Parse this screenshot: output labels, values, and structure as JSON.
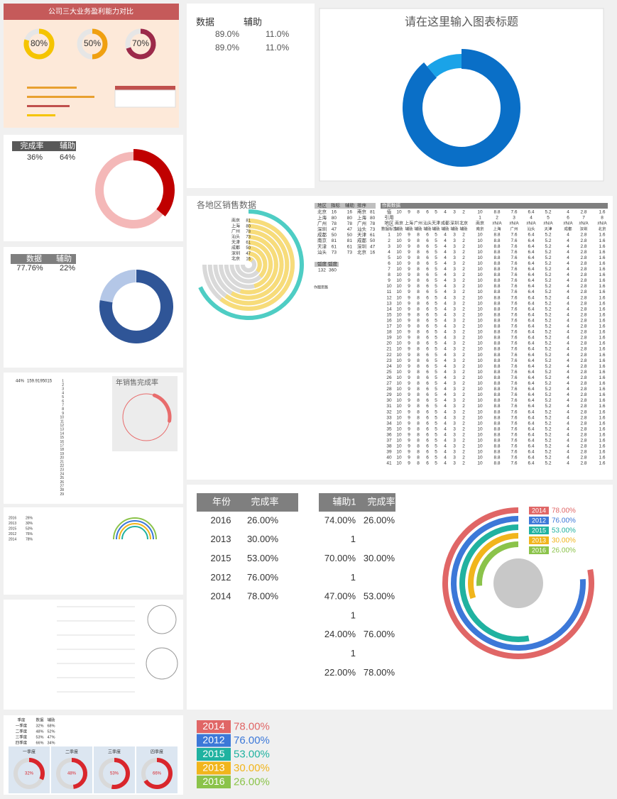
{
  "profit_panel": {
    "title": "公司三大业务盈利能力对比",
    "gauges": [
      80,
      50,
      70
    ],
    "gauge_labels": [
      "80%",
      "50%",
      "70%"
    ],
    "colors": [
      "#f5c400",
      "#f0a010",
      "#9c2a4a"
    ]
  },
  "donut_a": {
    "headers": [
      "数据",
      "辅助"
    ],
    "rows": [
      [
        "89.0%",
        "11.0%"
      ],
      [
        "89.0%",
        "11.0%"
      ]
    ],
    "title": "请在这里输入图表标题",
    "values": [
      89,
      11
    ],
    "colors": [
      "#0a6fc7",
      "#1aa3e8"
    ]
  },
  "donut_b": {
    "headers": [
      "完成率",
      "辅助"
    ],
    "row": [
      "36%",
      "64%"
    ],
    "values": [
      36,
      64
    ],
    "colors": [
      "#c00000",
      "#f4b8b8"
    ]
  },
  "donut_c": {
    "headers": [
      "数据",
      "辅助"
    ],
    "row": [
      "77.76%",
      "22%"
    ],
    "values": [
      77.76,
      22
    ],
    "colors": [
      "#2f5597",
      "#b4c7e7"
    ]
  },
  "sales_panel": {
    "title": "年销售完成率",
    "head": [
      "44%",
      "159.9195015"
    ],
    "value": 44,
    "numbers": [
      1,
      2,
      3,
      4,
      5,
      6,
      7,
      8,
      9,
      10,
      11,
      12,
      13,
      14,
      15,
      16,
      17,
      18,
      19,
      20,
      21,
      22,
      23,
      24,
      25,
      26,
      27,
      28,
      29
    ],
    "color": "#e86c6c"
  },
  "year_table": {
    "rows": [
      [
        "2016",
        "26%"
      ],
      [
        "2013",
        "30%"
      ],
      [
        "2015",
        "53%"
      ],
      [
        "2012",
        "76%"
      ],
      [
        "2014",
        "78%"
      ]
    ]
  },
  "quarter_panel": {
    "headers": [
      "季度",
      "数据",
      "辅助"
    ],
    "rows": [
      [
        "一季度",
        "32%",
        "68%"
      ],
      [
        "二季度",
        "48%",
        "52%"
      ],
      [
        "三季度",
        "53%",
        "47%"
      ],
      [
        "四季度",
        "66%",
        "34%"
      ]
    ],
    "values": [
      32,
      48,
      53,
      66
    ],
    "value_labels": [
      "32%",
      "48%",
      "53%",
      "66%"
    ]
  },
  "radial": {
    "title": "各地区销售数据",
    "table_headers": [
      "地区",
      "指标",
      "辅助",
      "排序"
    ],
    "table": [
      [
        "北京",
        16,
        16,
        "南京",
        81
      ],
      [
        "上海",
        80,
        80,
        "上海",
        80
      ],
      [
        "广州",
        78,
        78,
        "广州",
        78
      ],
      [
        "深圳",
        47,
        47,
        "汕头",
        73
      ],
      [
        "成都",
        50,
        50,
        "天津",
        61
      ],
      [
        "南京",
        81,
        81,
        "成都",
        50
      ],
      [
        "天津",
        61,
        61,
        "深圳",
        47
      ],
      [
        "汕头",
        73,
        73,
        "北京",
        16
      ]
    ],
    "arc_headers": [
      "弧度",
      "弧度"
    ],
    "arc_values": [
      132,
      360
    ],
    "notes": [
      "作图思路"
    ]
  },
  "matrix": {
    "title": "作图数据",
    "value_row": {
      "label": "值",
      "values": [
        10,
        9,
        8,
        6,
        5,
        4,
        3,
        2,
        10,
        8.8,
        7.6,
        6.4,
        5.2,
        4,
        2.8,
        1.6
      ]
    },
    "ref_row": {
      "label": "引用",
      "values": [
        1,
        2,
        3,
        4,
        5,
        6,
        7,
        8
      ]
    },
    "region_row": {
      "label": "地区",
      "values": [
        "南京",
        "上海",
        "广州",
        "汕头",
        "天津",
        "成都",
        "深圳",
        "北京",
        "南京",
        "#N/A",
        "#N/A",
        "#N/A",
        "#N/A",
        "#N/A",
        "#N/A",
        "#N/A"
      ]
    },
    "header": [
      "数据标签",
      "辅助",
      "辅助",
      "辅助",
      "辅助",
      "辅助",
      "辅助",
      "辅助",
      "辅助",
      "南京",
      "上海",
      "广州",
      "汕头",
      "天津",
      "成都",
      "深圳",
      "北京"
    ],
    "rows": [
      [
        1,
        10,
        9,
        8,
        6,
        5,
        4,
        3,
        2,
        10,
        8.8,
        7.6,
        6.4,
        5.2,
        4,
        2.8,
        1.6
      ],
      [
        2,
        10,
        9,
        8,
        6,
        5,
        4,
        3,
        2,
        10,
        8.8,
        7.6,
        6.4,
        5.2,
        4,
        2.8,
        1.6
      ],
      [
        3,
        10,
        9,
        8,
        6,
        5,
        4,
        3,
        2,
        10,
        8.8,
        7.6,
        6.4,
        5.2,
        4,
        2.8,
        1.6
      ],
      [
        4,
        10,
        9,
        8,
        6,
        5,
        4,
        3,
        2,
        10,
        8.8,
        7.6,
        6.4,
        5.2,
        4,
        2.8,
        1.6
      ],
      [
        5,
        10,
        9,
        8,
        6,
        5,
        4,
        3,
        2,
        10,
        8.8,
        7.6,
        6.4,
        5.2,
        4,
        2.8,
        1.6
      ],
      [
        6,
        10,
        9,
        8,
        6,
        5,
        4,
        3,
        2,
        10,
        8.8,
        7.6,
        6.4,
        5.2,
        4,
        2.8,
        1.6
      ],
      [
        7,
        10,
        9,
        8,
        6,
        5,
        4,
        3,
        2,
        10,
        8.8,
        7.6,
        6.4,
        5.2,
        4,
        2.8,
        1.6
      ],
      [
        8,
        10,
        9,
        8,
        6,
        5,
        4,
        3,
        2,
        10,
        8.8,
        7.6,
        6.4,
        5.2,
        4,
        2.8,
        1.6
      ],
      [
        9,
        10,
        9,
        8,
        6,
        5,
        4,
        3,
        2,
        10,
        8.8,
        7.6,
        6.4,
        5.2,
        4,
        2.8,
        1.6
      ],
      [
        10,
        10,
        9,
        8,
        6,
        5,
        4,
        3,
        2,
        10,
        8.8,
        7.6,
        6.4,
        5.2,
        4,
        2.8,
        1.6
      ],
      [
        11,
        10,
        9,
        8,
        6,
        5,
        4,
        3,
        2,
        10,
        8.8,
        7.6,
        6.4,
        5.2,
        4,
        2.8,
        1.6
      ],
      [
        12,
        10,
        9,
        8,
        6,
        5,
        4,
        3,
        2,
        10,
        8.8,
        7.6,
        6.4,
        5.2,
        4,
        2.8,
        1.6
      ],
      [
        13,
        10,
        9,
        8,
        6,
        5,
        4,
        3,
        2,
        10,
        8.8,
        7.6,
        6.4,
        5.2,
        4,
        2.8,
        1.6
      ],
      [
        14,
        10,
        9,
        8,
        6,
        5,
        4,
        3,
        2,
        10,
        8.8,
        7.6,
        6.4,
        5.2,
        4,
        2.8,
        1.6
      ],
      [
        15,
        10,
        9,
        8,
        6,
        5,
        4,
        3,
        2,
        10,
        8.8,
        7.6,
        6.4,
        5.2,
        4,
        2.8,
        1.6
      ],
      [
        16,
        10,
        9,
        8,
        6,
        5,
        4,
        3,
        2,
        10,
        8.8,
        7.6,
        6.4,
        5.2,
        4,
        2.8,
        1.6
      ],
      [
        17,
        10,
        9,
        8,
        6,
        5,
        4,
        3,
        2,
        10,
        8.8,
        7.6,
        6.4,
        5.2,
        4,
        2.8,
        1.6
      ],
      [
        18,
        10,
        9,
        8,
        6,
        5,
        4,
        3,
        2,
        10,
        8.8,
        7.6,
        6.4,
        5.2,
        4,
        2.8,
        1.6
      ],
      [
        19,
        10,
        9,
        8,
        6,
        5,
        4,
        3,
        2,
        10,
        8.8,
        7.6,
        6.4,
        5.2,
        4,
        2.8,
        1.6
      ],
      [
        20,
        10,
        9,
        8,
        6,
        5,
        4,
        3,
        2,
        10,
        8.8,
        7.6,
        6.4,
        5.2,
        4,
        2.8,
        1.6
      ],
      [
        21,
        10,
        9,
        8,
        6,
        5,
        4,
        3,
        2,
        10,
        8.8,
        7.6,
        6.4,
        5.2,
        4,
        2.8,
        1.6
      ],
      [
        22,
        10,
        9,
        8,
        6,
        5,
        4,
        3,
        2,
        10,
        8.8,
        7.6,
        6.4,
        5.2,
        4,
        2.8,
        1.6
      ],
      [
        23,
        10,
        9,
        8,
        6,
        5,
        4,
        3,
        2,
        10,
        8.8,
        7.6,
        6.4,
        5.2,
        4,
        2.8,
        1.6
      ],
      [
        24,
        10,
        9,
        8,
        6,
        5,
        4,
        3,
        2,
        10,
        8.8,
        7.6,
        6.4,
        5.2,
        4,
        2.8,
        1.6
      ],
      [
        25,
        10,
        9,
        8,
        6,
        5,
        4,
        3,
        2,
        10,
        8.8,
        7.6,
        6.4,
        5.2,
        4,
        2.8,
        1.6
      ],
      [
        26,
        10,
        9,
        8,
        6,
        5,
        4,
        3,
        2,
        10,
        8.8,
        7.6,
        6.4,
        5.2,
        4,
        2.8,
        1.6
      ],
      [
        27,
        10,
        9,
        8,
        6,
        5,
        4,
        3,
        2,
        10,
        8.8,
        7.6,
        6.4,
        5.2,
        4,
        2.8,
        1.6
      ],
      [
        28,
        10,
        9,
        8,
        6,
        5,
        4,
        3,
        2,
        10,
        8.8,
        7.6,
        6.4,
        5.2,
        4,
        2.8,
        1.6
      ],
      [
        29,
        10,
        9,
        8,
        6,
        5,
        4,
        3,
        2,
        10,
        8.8,
        7.6,
        6.4,
        5.2,
        4,
        2.8,
        1.6
      ],
      [
        30,
        10,
        9,
        8,
        6,
        5,
        4,
        3,
        2,
        10,
        8.8,
        7.6,
        6.4,
        5.2,
        4,
        2.8,
        1.6
      ],
      [
        31,
        10,
        9,
        8,
        6,
        5,
        4,
        3,
        2,
        10,
        8.8,
        7.6,
        6.4,
        5.2,
        4,
        2.8,
        1.6
      ],
      [
        32,
        10,
        9,
        8,
        6,
        5,
        4,
        3,
        2,
        10,
        8.8,
        7.6,
        6.4,
        5.2,
        4,
        2.8,
        1.6
      ],
      [
        33,
        10,
        9,
        8,
        6,
        5,
        4,
        3,
        2,
        10,
        8.8,
        7.6,
        6.4,
        5.2,
        4,
        2.8,
        1.6
      ],
      [
        34,
        10,
        9,
        8,
        6,
        5,
        4,
        3,
        2,
        10,
        8.8,
        7.6,
        6.4,
        5.2,
        4,
        2.8,
        1.6
      ],
      [
        35,
        10,
        9,
        8,
        6,
        5,
        4,
        3,
        2,
        10,
        8.8,
        7.6,
        6.4,
        5.2,
        4,
        2.8,
        1.6
      ],
      [
        36,
        10,
        9,
        8,
        6,
        5,
        4,
        3,
        2,
        10,
        8.8,
        7.6,
        6.4,
        5.2,
        4,
        2.8,
        1.6
      ],
      [
        37,
        10,
        9,
        8,
        6,
        5,
        4,
        3,
        2,
        10,
        8.8,
        7.6,
        6.4,
        5.2,
        4,
        2.8,
        1.6
      ],
      [
        38,
        10,
        9,
        8,
        6,
        5,
        4,
        3,
        2,
        10,
        8.8,
        7.6,
        6.4,
        5.2,
        4,
        2.8,
        1.6
      ],
      [
        39,
        10,
        9,
        8,
        6,
        5,
        4,
        3,
        2,
        10,
        8.8,
        7.6,
        6.4,
        5.2,
        4,
        2.8,
        1.6
      ],
      [
        40,
        10,
        9,
        8,
        6,
        5,
        4,
        3,
        2,
        10,
        8.8,
        7.6,
        6.4,
        5.2,
        4,
        2.8,
        1.6
      ],
      [
        41,
        10,
        9,
        8,
        6,
        5,
        4,
        3,
        2,
        10,
        8.8,
        7.6,
        6.4,
        5.2,
        4,
        2.8,
        1.6
      ]
    ]
  },
  "rings": {
    "headers": [
      "年份",
      "完成率"
    ],
    "rows": [
      [
        "2016",
        "26.00%"
      ],
      [
        "2013",
        "30.00%"
      ],
      [
        "2015",
        "53.00%"
      ],
      [
        "2012",
        "76.00%"
      ],
      [
        "2014",
        "78.00%"
      ]
    ],
    "headers2": [
      "辅助1",
      "完成率"
    ],
    "rows2": [
      [
        "74.00%",
        "26.00%"
      ],
      [
        "1"
      ],
      [
        "70.00%",
        "30.00%"
      ],
      [
        "1"
      ],
      [
        "47.00%",
        "53.00%"
      ],
      [
        "1"
      ],
      [
        "24.00%",
        "76.00%"
      ],
      [
        "1"
      ],
      [
        "22.00%",
        "78.00%"
      ]
    ],
    "legend": [
      {
        "year": "2014",
        "value": 78,
        "label": "78.00%",
        "color": "#e06666"
      },
      {
        "year": "2012",
        "value": 76,
        "label": "76.00%",
        "color": "#3c78d8"
      },
      {
        "year": "2015",
        "value": 53,
        "label": "53.00%",
        "color": "#20b2a0"
      },
      {
        "year": "2013",
        "value": 30,
        "label": "30.00%",
        "color": "#f1b51c"
      },
      {
        "year": "2016",
        "value": 26,
        "label": "26.00%",
        "color": "#8bc34a"
      }
    ]
  }
}
